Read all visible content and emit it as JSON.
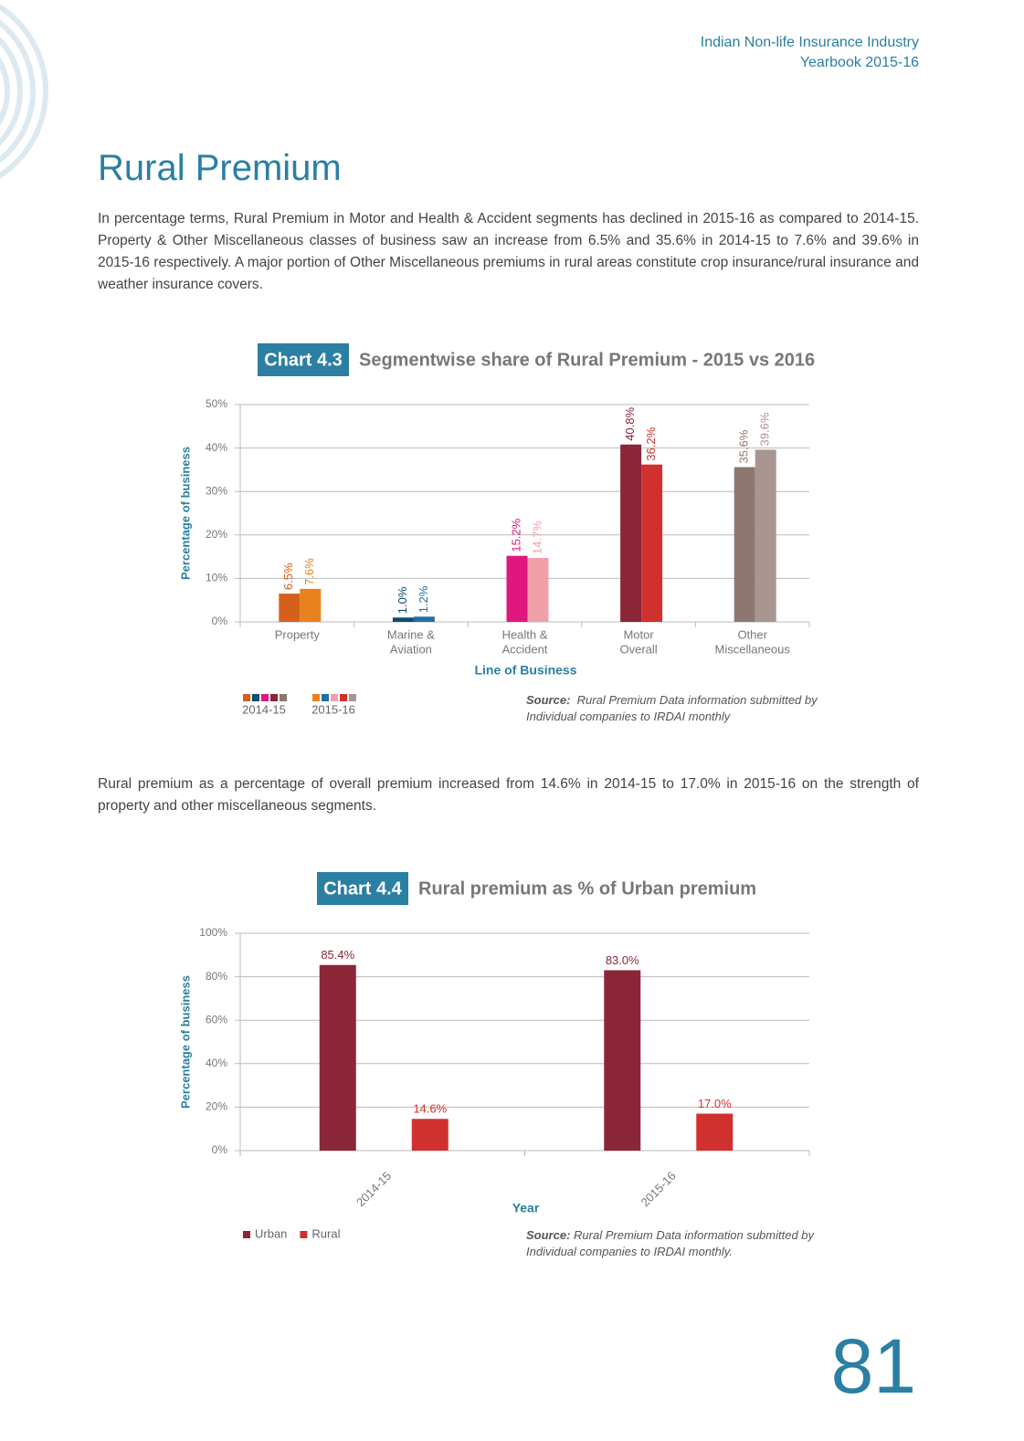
{
  "header": {
    "line1": "Indian Non-life Insurance Industry",
    "line2": "Yearbook 2015-16"
  },
  "title": "Rural Premium",
  "paragraph1": "In percentage terms, Rural Premium in Motor and Health & Accident segments has declined in 2015-16 as compared to 2014-15. Property & Other Miscellaneous classes of business saw an increase from 6.5% and 35.6% in 2014-15 to 7.6% and 39.6% in 2015-16 respectively. A major portion of Other Miscellaneous premiums in rural areas constitute crop insurance/rural insurance and weather insurance covers.",
  "chart_4_3": {
    "type": "bar",
    "label": "Chart 4.3",
    "title": "Segmentwise share of Rural Premium - 2015 vs 2016",
    "ylabel": "Percentage of business",
    "xlabel": "Line of Business",
    "categories": [
      [
        "Property"
      ],
      [
        "Marine &",
        "Aviation"
      ],
      [
        "Health &",
        "Accident"
      ],
      [
        "Motor",
        "Overall"
      ],
      [
        "Other",
        "Miscellaneous"
      ]
    ],
    "series": [
      {
        "name": "2014-15",
        "colors": [
          "#d4601c",
          "#0f4c6e",
          "#e0177e",
          "#8b2639",
          "#8c7870"
        ],
        "values": [
          6.5,
          1.0,
          15.2,
          40.8,
          35.6
        ],
        "value_labels": [
          "6.5%",
          "1.0%",
          "15.2%",
          "40.8%",
          "35.6%"
        ]
      },
      {
        "name": "2015-16",
        "colors": [
          "#e8821e",
          "#1f6fa3",
          "#f0a0a8",
          "#d1312e",
          "#a99690"
        ],
        "values": [
          7.6,
          1.2,
          14.7,
          36.2,
          39.6
        ],
        "value_labels": [
          "7.6%",
          "1.2%",
          "14.7%",
          "36.2%",
          "39.6%"
        ]
      }
    ],
    "ylim": [
      0,
      50
    ],
    "yticks": [
      {
        "value": 0,
        "label": "0%"
      },
      {
        "value": 10,
        "label": "10%"
      },
      {
        "value": 20,
        "label": "20%"
      },
      {
        "value": 30,
        "label": "30%"
      },
      {
        "value": 40,
        "label": "40%"
      },
      {
        "value": 50,
        "label": "50%"
      }
    ],
    "grid": true,
    "source_label": "Source:",
    "source_text": "Rural Premium Data information submitted by Individual companies to IRDAI monthly"
  },
  "paragraph2": "Rural premium as a percentage of overall premium increased from 14.6% in 2014-15 to 17.0% in 2015-16 on the strength of property and other miscellaneous segments.",
  "chart_4_4": {
    "type": "bar",
    "label": "Chart 4.4",
    "title": "Rural premium as % of Urban premium",
    "ylabel": "Percentage of business",
    "xlabel": "Year",
    "categories": [
      "2014-15",
      "2015-16"
    ],
    "series": [
      {
        "name": "Urban",
        "color": "#8b2639",
        "values": [
          85.4,
          83.0
        ],
        "value_labels": [
          "85.4%",
          "83.0%"
        ]
      },
      {
        "name": "Rural",
        "color": "#d1312e",
        "values": [
          14.6,
          17.0
        ],
        "value_labels": [
          "14.6%",
          "17.0%"
        ]
      }
    ],
    "ylim": [
      0,
      100
    ],
    "yticks": [
      {
        "value": 0,
        "label": "0%"
      },
      {
        "value": 20,
        "label": "20%"
      },
      {
        "value": 40,
        "label": "40%"
      },
      {
        "value": 60,
        "label": "60%"
      },
      {
        "value": 80,
        "label": "80%"
      },
      {
        "value": 100,
        "label": "100%"
      }
    ],
    "grid": true,
    "source_label": "Source:",
    "source_text": "Rural Premium Data information submitted by Individual companies to IRDAI monthly."
  },
  "page_number": "81"
}
